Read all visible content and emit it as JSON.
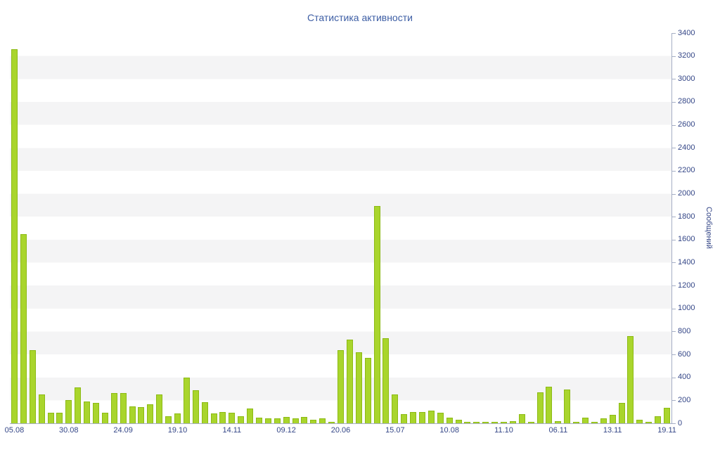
{
  "chart_data": {
    "type": "bar",
    "title": "Статистика активности",
    "ylabel": "Сообщений",
    "ylim": [
      0,
      3400
    ],
    "y_tick_step": 200,
    "legend": "none",
    "grid": "horizontal-alternating-bands",
    "bar_color": "#a9d52c",
    "bar_border_color": "#8cba15",
    "x_tick_labels": [
      {
        "index": 0,
        "label": "05.08"
      },
      {
        "index": 6,
        "label": "30.08"
      },
      {
        "index": 12,
        "label": "24.09"
      },
      {
        "index": 18,
        "label": "19.10"
      },
      {
        "index": 24,
        "label": "14.11"
      },
      {
        "index": 30,
        "label": "09.12"
      },
      {
        "index": 36,
        "label": "20.06"
      },
      {
        "index": 42,
        "label": "15.07"
      },
      {
        "index": 48,
        "label": "10.08"
      },
      {
        "index": 54,
        "label": "11.10"
      },
      {
        "index": 60,
        "label": "06.11"
      },
      {
        "index": 66,
        "label": "13.11"
      },
      {
        "index": 72,
        "label": "19.11"
      }
    ],
    "values": [
      3260,
      1650,
      640,
      250,
      90,
      90,
      205,
      310,
      190,
      175,
      90,
      265,
      265,
      150,
      140,
      165,
      250,
      60,
      85,
      400,
      290,
      185,
      85,
      95,
      90,
      60,
      130,
      50,
      45,
      40,
      55,
      45,
      55,
      30,
      45,
      15,
      640,
      730,
      620,
      570,
      1890,
      740,
      250,
      80,
      100,
      95,
      110,
      90,
      50,
      30,
      15,
      10,
      10,
      15,
      10,
      20,
      80,
      15,
      270,
      320,
      20,
      295,
      15,
      50,
      10,
      45,
      75,
      180,
      760,
      30,
      10,
      60,
      135
    ]
  },
  "colors": {
    "title": "#3c5da4",
    "axis_text": "#344687",
    "axis_line": "#a5aec5",
    "band_light": "#ffffff",
    "band_dark": "#f4f4f5"
  }
}
